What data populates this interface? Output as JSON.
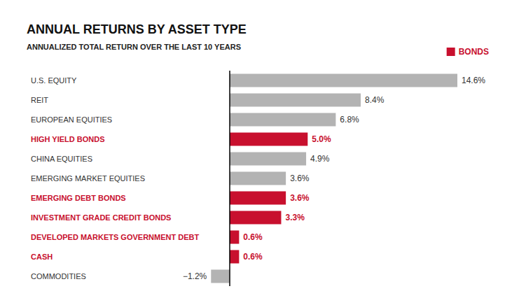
{
  "chart_data": {
    "type": "bar",
    "orientation": "horizontal",
    "title": "ANNUAL RETURNS BY ASSET TYPE",
    "subtitle": "ANNUALIZED TOTAL RETURN OVER THE LAST 10 YEARS",
    "categories": [
      "U.S. EQUITY",
      "REIT",
      "EUROPEAN EQUITIES",
      "HIGH YIELD BONDS",
      "CHINA EQUITIES",
      "EMERGING MARKET EQUITIES",
      "EMERGING DEBT BONDS",
      "INVESTMENT GRADE CREDIT BONDS",
      "DEVELOPED MARKETS GOVERNMENT DEBT",
      "CASH",
      "COMMODITIES"
    ],
    "series": [
      {
        "color": "#b3b3b3",
        "values": [
          14.6,
          8.4,
          6.8,
          null,
          4.9,
          3.6,
          null,
          null,
          null,
          null,
          -1.2
        ],
        "value_labels": [
          "14.6%",
          "8.4%",
          "6.8%",
          null,
          "4.9%",
          "3.6%",
          null,
          null,
          null,
          null,
          "−1.2%"
        ]
      },
      {
        "name": "BONDS",
        "color": "#c8102e",
        "values": [
          null,
          null,
          null,
          5.0,
          null,
          null,
          3.6,
          3.3,
          0.6,
          0.6,
          null
        ],
        "value_labels": [
          null,
          null,
          null,
          "5.0%",
          null,
          null,
          "3.6%",
          "3.3%",
          "0.6%",
          "0.6%",
          null
        ]
      }
    ],
    "xlim": [
      -2,
      16
    ],
    "grid": false,
    "tick_labels": "y",
    "legend": "top right",
    "data_labels": true
  }
}
